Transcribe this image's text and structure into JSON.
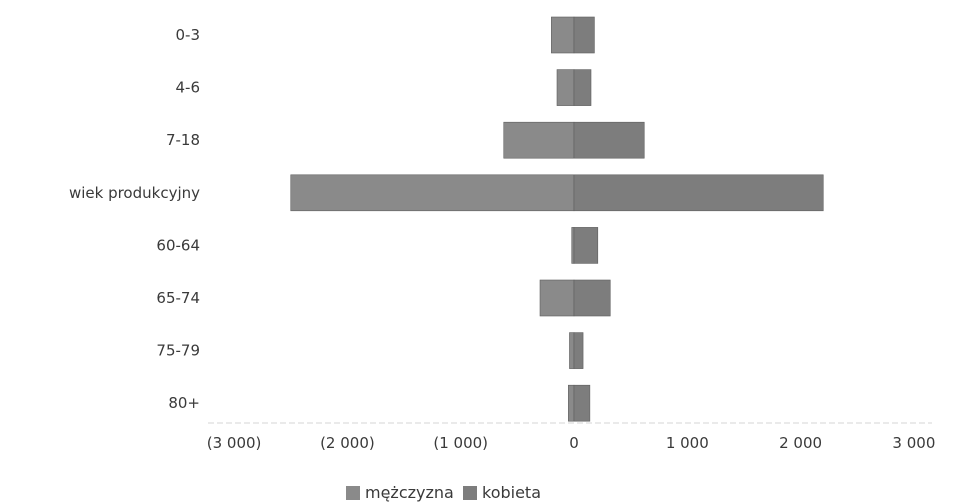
{
  "chart_data": {
    "type": "bar",
    "orientation": "horizontal",
    "stacked": true,
    "categories": [
      "0-3",
      "4-6",
      "7-18",
      "wiek produkcyjny",
      "60-64",
      "65-74",
      "75-79",
      "80+"
    ],
    "series": [
      {
        "name": "mężczyzna",
        "values": [
          -200,
          -150,
          -620,
          -2500,
          -20,
          -300,
          -40,
          -50
        ],
        "color": "#8a8a8a"
      },
      {
        "name": "kobieta",
        "values": [
          180,
          150,
          620,
          2200,
          210,
          320,
          80,
          140
        ],
        "color": "#7d7d7d"
      }
    ],
    "xlim": [
      -3000,
      3000
    ],
    "xticks": [
      -3000,
      -2000,
      -1000,
      0,
      1000,
      2000,
      3000
    ],
    "xtick_labels": [
      "(3 000)",
      "(2 000)",
      "(1 000)",
      "0",
      "1 000",
      "2 000",
      "3 000"
    ],
    "grid": false,
    "legend_position": "bottom"
  }
}
